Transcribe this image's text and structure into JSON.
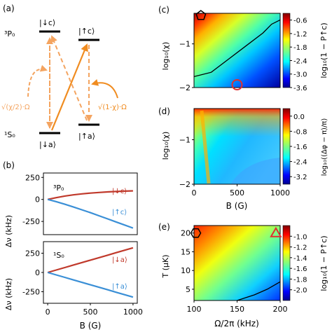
{
  "panels": {
    "a": {
      "label": "(a)",
      "level_upper": "³P₀",
      "level_lower": "¹S₀",
      "state_c_down": "|↓c⟩",
      "state_c_up": "|↑c⟩",
      "state_a_down": "|↓a⟩",
      "state_a_up": "|↑a⟩",
      "rabi_left": "√(χ/2)·Ω",
      "rabi_right": "√(1-χ)·Ω",
      "colors": {
        "dashed": "#f4a460",
        "solid": "#f08c20"
      }
    },
    "b": {
      "label": "(b)",
      "ylabel": "Δν (kHz)",
      "xlabel": "B (G)",
      "top_title": "³P₀",
      "bottom_title": "¹S₀",
      "top_legend_red": "|↓c⟩",
      "top_legend_blue": "|↑c⟩",
      "bottom_legend_red": "|↓a⟩",
      "bottom_legend_blue": "|↑a⟩",
      "yticks": [
        "250",
        "0",
        "-250"
      ],
      "xticks": [
        "0",
        "500",
        "1000"
      ],
      "colors": {
        "red": "#c0392b",
        "blue": "#3a8fd6"
      }
    },
    "c": {
      "label": "(c)",
      "ylabel": "log₁₀(χ)",
      "cbar_label": "log₁₀(1 − P↑c)",
      "yticks": [
        "−1",
        "−2"
      ],
      "cbar_ticks": [
        "-0.6",
        "-1.2",
        "-1.8",
        "-2.4",
        "-3.0",
        "-3.6"
      ]
    },
    "d": {
      "label": "(d)",
      "ylabel": "log₁₀(χ)",
      "xlabel": "B (G)",
      "cbar_label": "log₁₀((Δφ − π)/π)",
      "yticks": [
        "−1",
        "−2"
      ],
      "xticks": [
        "0",
        "500",
        "1000"
      ],
      "cbar_ticks": [
        "0.0",
        "-0.8",
        "-1.6",
        "-2.4",
        "-3.2"
      ]
    },
    "e": {
      "label": "(e)",
      "ylabel": "T (μK)",
      "xlabel": "Ω/2π (kHz)",
      "cbar_label": "log₁₀(1 − P↑c)",
      "yticks": [
        "20",
        "15",
        "10",
        "5"
      ],
      "xticks": [
        "100",
        "150",
        "200"
      ],
      "cbar_ticks": [
        "-1.0",
        "-1.2",
        "-1.4",
        "-1.6",
        "-1.8",
        "-2.0"
      ]
    }
  },
  "chart_data": [
    {
      "type": "line",
      "panel": "b-top",
      "title": "³P₀",
      "xlabel": "B (G)",
      "ylabel": "Δν (kHz)",
      "xlim": [
        -50,
        1050
      ],
      "ylim": [
        -400,
        300
      ],
      "x": [
        0,
        100,
        200,
        300,
        400,
        500,
        600,
        700,
        800,
        900,
        1000
      ],
      "series": [
        {
          "name": "|↓c⟩",
          "values": [
            0,
            20,
            38,
            52,
            63,
            72,
            79,
            85,
            90,
            94,
            97
          ]
        },
        {
          "name": "|↑c⟩",
          "values": [
            0,
            -25,
            -55,
            -85,
            -118,
            -150,
            -185,
            -220,
            -255,
            -290,
            -325
          ]
        }
      ]
    },
    {
      "type": "line",
      "panel": "b-bottom",
      "title": "¹S₀",
      "xlabel": "B (G)",
      "ylabel": "Δν (kHz)",
      "xlim": [
        -50,
        1050
      ],
      "ylim": [
        -400,
        400
      ],
      "x": [
        0,
        100,
        200,
        300,
        400,
        500,
        600,
        700,
        800,
        900,
        1000
      ],
      "series": [
        {
          "name": "|↓a⟩",
          "values": [
            0,
            32,
            64,
            96,
            128,
            160,
            192,
            224,
            256,
            288,
            320
          ]
        },
        {
          "name": "|↑a⟩",
          "values": [
            0,
            -32,
            -64,
            -96,
            -128,
            -160,
            -192,
            -224,
            -256,
            -288,
            -320
          ]
        }
      ]
    },
    {
      "type": "heatmap",
      "panel": "c",
      "ylabel": "log₁₀(χ)",
      "xlim": [
        0,
        1000
      ],
      "ylim": [
        -2,
        -0.3
      ],
      "zlim": [
        -3.6,
        -0.3
      ],
      "zticks": [
        -0.6,
        -1.2,
        -1.8,
        -2.4,
        -3.0,
        -3.6
      ],
      "contour": {
        "level": -1.8,
        "x": [
          0,
          200,
          400,
          600,
          800,
          900,
          1000
        ],
        "y": [
          -1.75,
          -1.65,
          -1.35,
          -1.05,
          -0.75,
          -0.55,
          -0.45
        ]
      },
      "markers": [
        {
          "shape": "pentagon",
          "x": 80,
          "y": -0.35
        },
        {
          "shape": "circle",
          "x": 500,
          "y": -2.0
        }
      ]
    },
    {
      "type": "heatmap",
      "panel": "d",
      "xlabel": "B (G)",
      "ylabel": "log₁₀(χ)",
      "xlim": [
        0,
        1000
      ],
      "ylim": [
        -2,
        -0.3
      ],
      "zlim": [
        -3.6,
        0.4
      ],
      "zticks": [
        0.0,
        -0.8,
        -1.6,
        -2.4,
        -3.2
      ]
    },
    {
      "type": "heatmap",
      "panel": "e",
      "xlabel": "Ω/2π (kHz)",
      "ylabel": "T (μK)",
      "xlim": [
        100,
        200
      ],
      "ylim": [
        2,
        22
      ],
      "zlim": [
        -2.2,
        -0.8
      ],
      "zticks": [
        -1.0,
        -1.2,
        -1.4,
        -1.6,
        -1.8,
        -2.0
      ],
      "contour": {
        "level": -1.9,
        "x": [
          150,
          170,
          185,
          200
        ],
        "y": [
          2,
          3.5,
          5,
          7
        ]
      },
      "markers": [
        {
          "shape": "hexagon",
          "x": 102,
          "y": 20
        },
        {
          "shape": "triangle",
          "x": 195,
          "y": 20
        }
      ]
    }
  ]
}
